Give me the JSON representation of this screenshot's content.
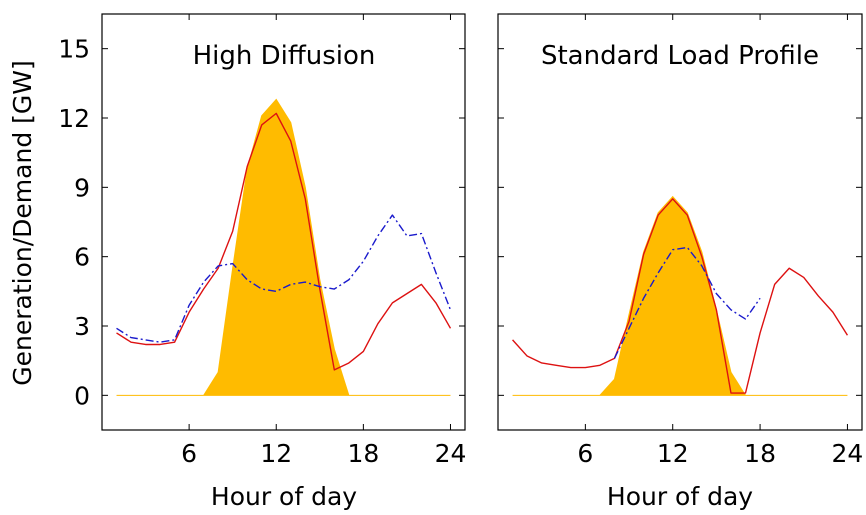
{
  "chart_data": {
    "type": "line",
    "ylabel": "Generation/Demand [GW]",
    "ylim": [
      -1.5,
      16.5
    ],
    "yticks": [
      0,
      3,
      6,
      9,
      12,
      15
    ],
    "xlim": [
      0,
      25
    ],
    "xticks": [
      6,
      12,
      18,
      24
    ],
    "colors": {
      "fill": "#ffbb00",
      "solid": "#dd1111",
      "dashdot": "#1a1acc"
    },
    "panels": [
      {
        "title": "High Diffusion",
        "xlabel": "Hour of day",
        "series": [
          {
            "style": "fill",
            "x": [
              1,
              2,
              3,
              4,
              5,
              6,
              7,
              8,
              9,
              10,
              11,
              12,
              13,
              14,
              15,
              16,
              17,
              18,
              19,
              20,
              21,
              22,
              23,
              24
            ],
            "values": [
              0,
              0,
              0,
              0,
              0,
              0,
              0,
              1,
              5.5,
              9.8,
              12.1,
              12.8,
              11.8,
              9,
              5,
              2,
              0,
              0,
              0,
              0,
              0,
              0,
              0,
              0
            ]
          },
          {
            "style": "solid",
            "x": [
              1,
              2,
              3,
              4,
              5,
              6,
              7,
              8,
              9,
              10,
              11,
              12,
              13,
              14,
              15,
              16,
              17,
              18,
              19,
              20,
              21,
              22,
              23,
              24
            ],
            "values": [
              2.7,
              2.3,
              2.2,
              2.2,
              2.3,
              3.6,
              4.6,
              5.5,
              7.1,
              9.9,
              11.7,
              12.2,
              11,
              8.5,
              4.6,
              1.1,
              1.4,
              1.9,
              3.1,
              4,
              4.4,
              4.8,
              4,
              2.9
            ]
          },
          {
            "style": "dashdot",
            "x": [
              1,
              2,
              3,
              4,
              5,
              6,
              7,
              8,
              9,
              10,
              11,
              12,
              13,
              14,
              15,
              16,
              17,
              18,
              19,
              20,
              21,
              22,
              23,
              24
            ],
            "values": [
              2.9,
              2.5,
              2.4,
              2.3,
              2.4,
              3.9,
              4.9,
              5.6,
              5.7,
              5,
              4.6,
              4.5,
              4.8,
              4.9,
              4.7,
              4.6,
              5,
              5.8,
              6.9,
              7.8,
              6.9,
              7,
              5.3,
              3.7
            ]
          }
        ]
      },
      {
        "title": "Standard Load Profile",
        "xlabel": "Hour of day",
        "series": [
          {
            "style": "fill",
            "x": [
              1,
              2,
              3,
              4,
              5,
              6,
              7,
              8,
              9,
              10,
              11,
              12,
              13,
              14,
              15,
              16,
              17,
              18,
              19,
              20,
              21,
              22,
              23,
              24
            ],
            "values": [
              0,
              0,
              0,
              0,
              0,
              0,
              0,
              0.7,
              3.5,
              6.2,
              7.9,
              8.6,
              7.9,
              6.2,
              3.7,
              1,
              0,
              0,
              0,
              0,
              0,
              0,
              0,
              0
            ]
          },
          {
            "style": "solid",
            "x": [
              1,
              2,
              3,
              4,
              5,
              6,
              7,
              8,
              9,
              10,
              11,
              12,
              13,
              14,
              15,
              16,
              17,
              18,
              19,
              20,
              21,
              22,
              23,
              24
            ],
            "values": [
              2.4,
              1.7,
              1.4,
              1.3,
              1.2,
              1.2,
              1.3,
              1.6,
              3.2,
              6.1,
              7.8,
              8.5,
              7.8,
              6,
              3.7,
              0.1,
              0.1,
              2.7,
              4.8,
              5.5,
              5.1,
              4.3,
              3.6,
              2.6
            ]
          },
          {
            "style": "dashdot",
            "x": [
              8,
              9,
              10,
              11,
              12,
              13,
              14,
              15,
              16,
              17,
              18
            ],
            "values": [
              1.6,
              2.9,
              4.2,
              5.3,
              6.3,
              6.4,
              5.6,
              4.4,
              3.7,
              3.3,
              4.2
            ]
          }
        ]
      }
    ]
  }
}
